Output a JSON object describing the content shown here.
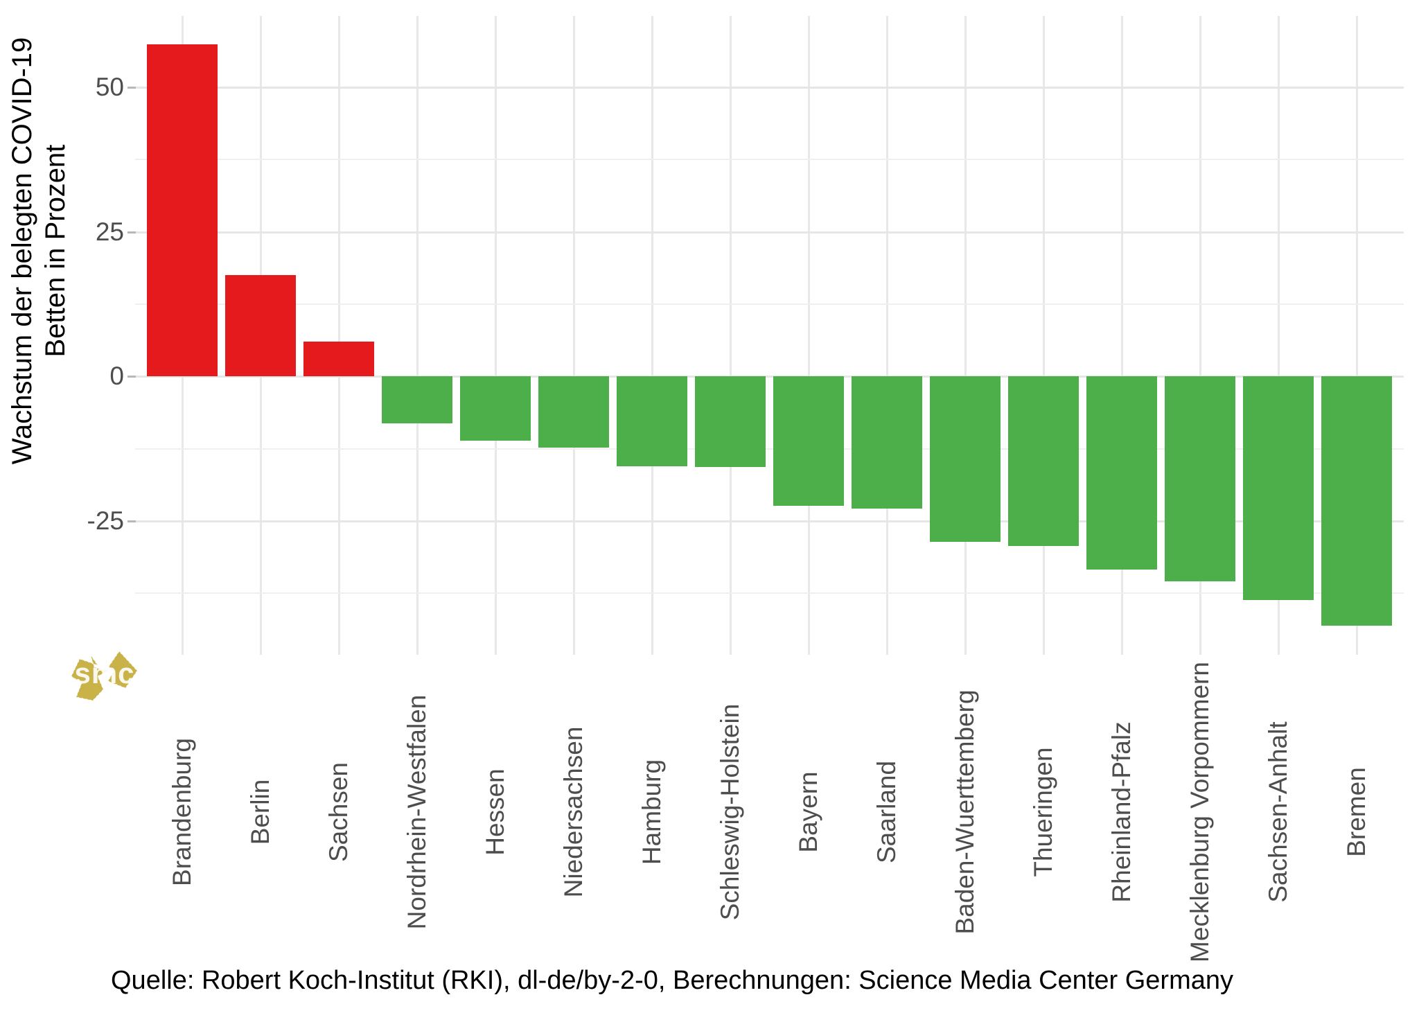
{
  "chart_data": {
    "type": "bar",
    "title": "",
    "ylabel_lines": [
      "Wachstum der belegten COVID-19",
      "Betten in Prozent"
    ],
    "xlabel": "",
    "caption": "Quelle: Robert Koch-Institut (RKI), dl-de/by-2-0, Berechnungen: Science Media Center Germany",
    "categories": [
      "Brandenburg",
      "Berlin",
      "Sachsen",
      "Nordrhein-Westfalen",
      "Hessen",
      "Niedersachsen",
      "Hamburg",
      "Schleswig-Holstein",
      "Bayern",
      "Saarland",
      "Baden-Wuerttemberg",
      "Thueringen",
      "Rheinland-Pfalz",
      "Mecklenburg Vorpommern",
      "Sachsen-Anhalt",
      "Bremen"
    ],
    "values": [
      57.4,
      17.5,
      6.0,
      -8.1,
      -11.1,
      -12.3,
      -15.5,
      -15.7,
      -22.4,
      -22.8,
      -28.6,
      -29.3,
      -33.4,
      -35.4,
      -38.6,
      -43.1
    ],
    "y_ticks": [
      50,
      25,
      0,
      -25
    ],
    "y_minor_ticks": [
      37.5,
      12.5,
      -12.5,
      -37.5
    ],
    "ylim": [
      -48.1,
      62.3
    ],
    "grid": true,
    "legend": false,
    "bar_colors": {
      "positive": "#e41a1c",
      "negative": "#4daf4a"
    }
  },
  "logo": {
    "text": "smc",
    "color": "#c9b349"
  }
}
